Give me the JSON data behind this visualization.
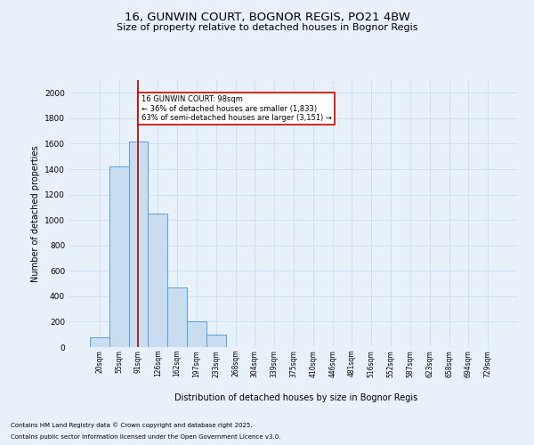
{
  "title_line1": "16, GUNWIN COURT, BOGNOR REGIS, PO21 4BW",
  "title_line2": "Size of property relative to detached houses in Bognor Regis",
  "xlabel": "Distribution of detached houses by size in Bognor Regis",
  "ylabel": "Number of detached properties",
  "categories": [
    "20sqm",
    "55sqm",
    "91sqm",
    "126sqm",
    "162sqm",
    "197sqm",
    "233sqm",
    "268sqm",
    "304sqm",
    "339sqm",
    "375sqm",
    "410sqm",
    "446sqm",
    "481sqm",
    "516sqm",
    "552sqm",
    "587sqm",
    "623sqm",
    "658sqm",
    "694sqm",
    "729sqm"
  ],
  "values": [
    75,
    1420,
    1620,
    1050,
    470,
    205,
    100,
    0,
    0,
    0,
    0,
    0,
    0,
    0,
    0,
    0,
    0,
    0,
    0,
    0,
    0
  ],
  "bar_color": "#c9ddf0",
  "bar_edge_color": "#5b9bd5",
  "grid_color": "#cce0f5",
  "annotation_text": "16 GUNWIN COURT: 98sqm\n← 36% of detached houses are smaller (1,833)\n63% of semi-detached houses are larger (3,151) →",
  "annotation_box_color": "#ffffff",
  "annotation_box_edge": "#cc0000",
  "vline_color": "#aa0000",
  "vline_x": 2.0,
  "footnote1": "Contains HM Land Registry data © Crown copyright and database right 2025.",
  "footnote2": "Contains public sector information licensed under the Open Government Licence v3.0.",
  "ylim_max": 2100,
  "yticks": [
    0,
    200,
    400,
    600,
    800,
    1000,
    1200,
    1400,
    1600,
    1800,
    2000
  ],
  "background_color": "#e8f1fa",
  "fig_width": 6.0,
  "fig_height": 5.0,
  "dpi": 100
}
